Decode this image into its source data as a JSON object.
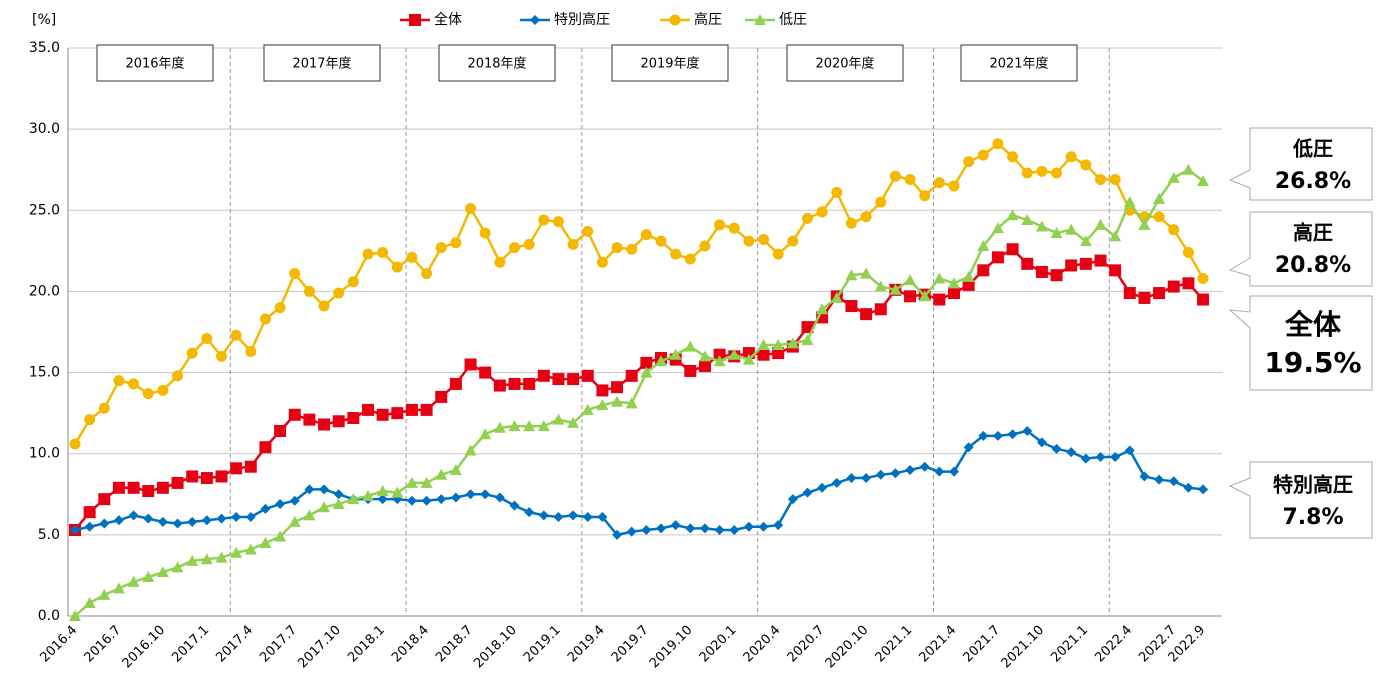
{
  "chart_data": {
    "type": "line",
    "y_unit": "[%]",
    "categories": [
      "2016.4",
      null,
      null,
      "2016.7",
      null,
      null,
      "2016.10",
      null,
      null,
      "2017.1",
      null,
      null,
      "2017.4",
      null,
      null,
      "2017.7",
      null,
      null,
      "2017.10",
      null,
      null,
      "2018.1",
      null,
      null,
      "2018.4",
      null,
      null,
      "2018.7",
      null,
      null,
      "2018.10",
      null,
      null,
      "2019.1",
      null,
      null,
      "2019.4",
      null,
      null,
      "2019.7",
      null,
      null,
      "2019.10",
      null,
      null,
      "2020.1",
      null,
      null,
      "2020.4",
      null,
      null,
      "2020.7",
      null,
      null,
      "2020.10",
      null,
      null,
      "2021.1",
      null,
      null,
      "2021.4",
      null,
      null,
      "2021.7",
      null,
      null,
      "2021.10",
      null,
      null,
      "2021.1",
      null,
      null,
      "2022.4",
      null,
      null,
      "2022.7",
      null,
      "2022.9"
    ],
    "series": [
      {
        "name": "全体",
        "color": "#e60012",
        "marker": "square",
        "values": [
          5.3,
          6.4,
          7.2,
          7.9,
          7.9,
          7.7,
          7.9,
          8.2,
          8.6,
          8.5,
          8.6,
          9.1,
          9.2,
          10.4,
          11.4,
          12.4,
          12.1,
          11.8,
          12.0,
          12.2,
          12.7,
          12.4,
          12.5,
          12.7,
          12.7,
          13.5,
          14.3,
          15.5,
          15.0,
          14.2,
          14.3,
          14.3,
          14.8,
          14.6,
          14.6,
          14.8,
          13.9,
          14.1,
          14.8,
          15.6,
          15.9,
          15.8,
          15.1,
          15.4,
          16.1,
          16.0,
          16.2,
          16.1,
          16.2,
          16.6,
          17.8,
          18.4,
          19.7,
          19.1,
          18.6,
          18.9,
          20.1,
          19.7,
          19.8,
          19.5,
          19.9,
          20.4,
          21.3,
          22.1,
          22.6,
          21.7,
          21.2,
          21.0,
          21.6,
          21.7,
          21.9,
          21.3,
          19.9,
          19.6,
          19.9,
          20.3,
          20.5,
          19.5
        ]
      },
      {
        "name": "特別高圧",
        "color": "#0070c0",
        "marker": "diamond",
        "values": [
          5.3,
          5.5,
          5.7,
          5.9,
          6.2,
          6.0,
          5.8,
          5.7,
          5.8,
          5.9,
          6.0,
          6.1,
          6.1,
          6.6,
          6.9,
          7.1,
          7.8,
          7.8,
          7.5,
          7.2,
          7.2,
          7.2,
          7.2,
          7.1,
          7.1,
          7.2,
          7.3,
          7.5,
          7.5,
          7.3,
          6.8,
          6.4,
          6.2,
          6.1,
          6.2,
          6.1,
          6.1,
          5.0,
          5.2,
          5.3,
          5.4,
          5.6,
          5.4,
          5.4,
          5.3,
          5.3,
          5.5,
          5.5,
          5.6,
          7.2,
          7.6,
          7.9,
          8.2,
          8.5,
          8.5,
          8.7,
          8.8,
          9.0,
          9.2,
          8.9,
          8.9,
          10.4,
          11.1,
          11.1,
          11.2,
          11.4,
          10.7,
          10.3,
          10.1,
          9.7,
          9.8,
          9.8,
          10.2,
          8.6,
          8.4,
          8.3,
          7.9,
          7.8
        ]
      },
      {
        "name": "高圧",
        "color": "#f5b800",
        "marker": "circle",
        "values": [
          10.6,
          12.1,
          12.8,
          14.5,
          14.3,
          13.7,
          13.9,
          14.8,
          16.2,
          17.1,
          16.0,
          17.3,
          16.3,
          18.3,
          19.0,
          21.1,
          20.0,
          19.1,
          19.9,
          20.6,
          22.3,
          22.4,
          21.5,
          22.1,
          21.1,
          22.7,
          23.0,
          25.1,
          23.6,
          21.8,
          22.7,
          22.9,
          24.4,
          24.3,
          22.9,
          23.7,
          21.8,
          22.7,
          22.6,
          23.5,
          23.1,
          22.3,
          22.0,
          22.8,
          24.1,
          23.9,
          23.1,
          23.2,
          22.3,
          23.1,
          24.5,
          24.9,
          26.1,
          24.2,
          24.6,
          25.5,
          27.1,
          26.9,
          25.9,
          26.7,
          26.5,
          28.0,
          28.4,
          29.1,
          28.3,
          27.3,
          27.4,
          27.3,
          28.3,
          27.8,
          26.9,
          26.9,
          25.0,
          24.6,
          24.6,
          23.8,
          22.4,
          20.8
        ]
      },
      {
        "name": "低圧",
        "color": "#92d050",
        "marker": "triangle",
        "values": [
          0.0,
          0.8,
          1.3,
          1.7,
          2.1,
          2.4,
          2.7,
          3.0,
          3.4,
          3.5,
          3.6,
          3.9,
          4.1,
          4.5,
          4.9,
          5.8,
          6.2,
          6.7,
          6.9,
          7.2,
          7.4,
          7.7,
          7.6,
          8.2,
          8.2,
          8.7,
          9.0,
          10.2,
          11.2,
          11.6,
          11.7,
          11.7,
          11.7,
          12.1,
          11.9,
          12.7,
          13.0,
          13.2,
          13.1,
          15.0,
          15.7,
          16.1,
          16.6,
          16.0,
          15.7,
          16.1,
          15.8,
          16.7,
          16.7,
          16.8,
          17.0,
          18.9,
          19.6,
          21.0,
          21.1,
          20.3,
          20.1,
          20.7,
          19.7,
          20.8,
          20.5,
          20.9,
          22.8,
          23.9,
          24.7,
          24.4,
          24.0,
          23.6,
          23.8,
          23.1,
          24.1,
          23.4,
          25.5,
          24.1,
          25.7,
          27.0,
          27.5,
          26.8
        ]
      }
    ],
    "ylim": [
      0,
      35
    ],
    "yticks": [
      {
        "value": 0,
        "label": "0.0"
      },
      {
        "value": 5,
        "label": "5.0"
      },
      {
        "value": 10,
        "label": "10.0"
      },
      {
        "value": 15,
        "label": "15.0"
      },
      {
        "value": 20,
        "label": "20.0"
      },
      {
        "value": 25,
        "label": "25.0"
      },
      {
        "value": 30,
        "label": "30.0"
      },
      {
        "value": 35,
        "label": "35.0"
      }
    ],
    "grid": true,
    "fiscal_years": [
      "2016年度",
      "2017年度",
      "2018年度",
      "2019年度",
      "2020年度",
      "2021年度"
    ],
    "callouts": [
      {
        "name": "低圧",
        "text": "26.8%"
      },
      {
        "name": "高圧",
        "text": "20.8%"
      },
      {
        "name": "全体",
        "text": "19.5%"
      },
      {
        "name": "特別高圧",
        "text": "7.8%"
      }
    ]
  }
}
